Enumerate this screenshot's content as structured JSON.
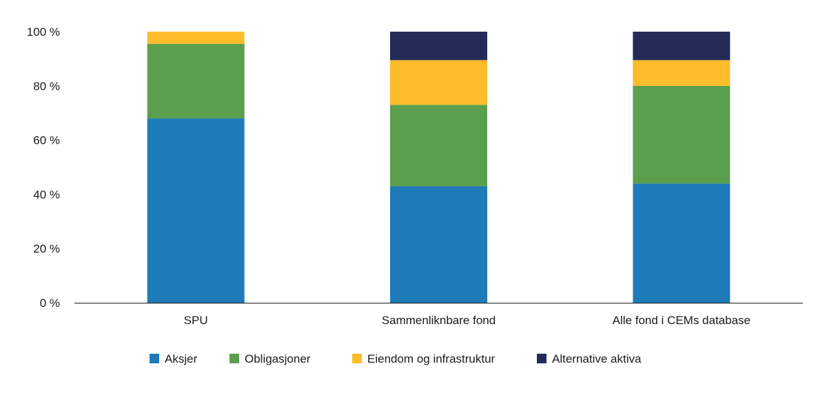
{
  "chart_data": {
    "type": "bar",
    "stacked": true,
    "categories": [
      "SPU",
      "Sammenliknbare fond",
      "Alle fond i CEMs database"
    ],
    "series": [
      {
        "name": "Aksjer",
        "color": "#1f7bb8",
        "values": [
          68,
          43,
          44
        ]
      },
      {
        "name": "Obligasjoner",
        "color": "#5b9e4d",
        "values": [
          27.5,
          30,
          36
        ]
      },
      {
        "name": "Eiendom og infrastruktur",
        "color": "#fbbd2b",
        "values": [
          4.5,
          16.5,
          9.5
        ]
      },
      {
        "name": "Alternative aktiva",
        "color": "#232c59",
        "values": [
          0,
          10.5,
          10.5
        ]
      }
    ],
    "ylim": [
      0,
      100
    ],
    "yticks": [
      0,
      20,
      40,
      60,
      80,
      100
    ],
    "ytick_labels": [
      "0 %",
      "20 %",
      "40 %",
      "60 %",
      "80 %",
      "100 %"
    ],
    "title": "",
    "xlabel": "",
    "ylabel": "",
    "grid": false,
    "legend_position": "bottom"
  }
}
